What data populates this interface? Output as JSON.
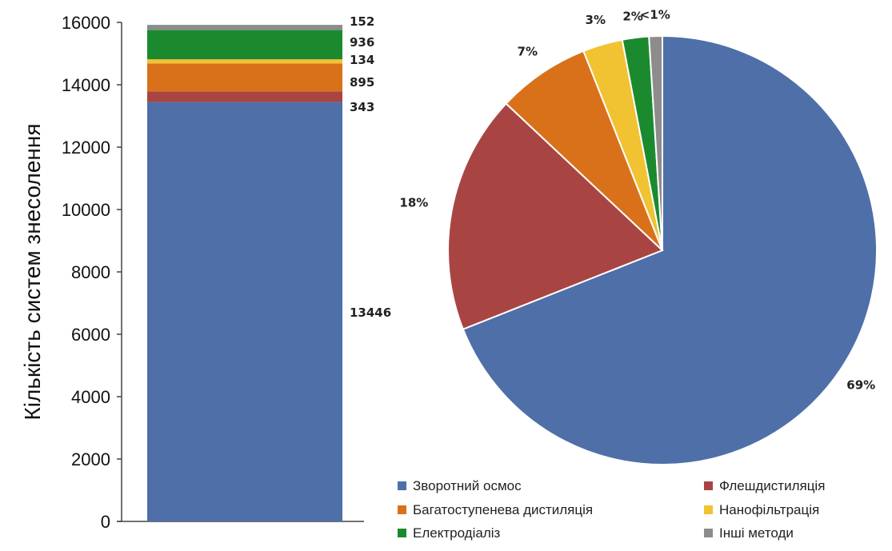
{
  "chart_data": [
    {
      "type": "bar",
      "stacked": true,
      "ylabel": "Кількість систем знесолення",
      "ylim": [
        0,
        16000
      ],
      "yticks": [
        0,
        2000,
        4000,
        6000,
        8000,
        10000,
        12000,
        14000,
        16000
      ],
      "series": [
        {
          "name": "Зворотний осмос",
          "value": 13446,
          "label": "13446",
          "color": "#4f6fa8"
        },
        {
          "name": "Флешдистиляція",
          "value": 343,
          "label": "343",
          "color": "#a84543"
        },
        {
          "name": "Багатоступенева дистиляція",
          "value": 895,
          "label": "895",
          "color": "#d9711a"
        },
        {
          "name": "Нанофільтрація",
          "value": 134,
          "label": "134",
          "color": "#f1c232"
        },
        {
          "name": "Електродіаліз",
          "value": 936,
          "label": "936",
          "color": "#1b8a2f"
        },
        {
          "name": "Інші методи",
          "value": 152,
          "label": "152",
          "color": "#8c8c8c"
        }
      ],
      "grid": false
    },
    {
      "type": "pie",
      "slices": [
        {
          "name": "Зворотний осмос",
          "value": 69,
          "label": "69%",
          "color": "#4f6fa8"
        },
        {
          "name": "Флешдистиляція",
          "value": 18,
          "label": "18%",
          "color": "#a84543"
        },
        {
          "name": "Багатоступенева дистиляція",
          "value": 7,
          "label": "7%",
          "color": "#d9711a"
        },
        {
          "name": "Нанофільтрація",
          "value": 3,
          "label": "3%",
          "color": "#f1c232"
        },
        {
          "name": "Електродіаліз",
          "value": 2,
          "label": "2%",
          "color": "#1b8a2f"
        },
        {
          "name": "Інші методи",
          "value": 1,
          "label": "<1%",
          "color": "#8c8c8c"
        }
      ],
      "legend_position": "bottom"
    }
  ],
  "legend": [
    {
      "label": "Зворотний осмос",
      "color": "#4f6fa8"
    },
    {
      "label": "Флешдистиляція",
      "color": "#a84543"
    },
    {
      "label": "Багатоступенева дистиляція",
      "color": "#d9711a"
    },
    {
      "label": "Нанофільтрація",
      "color": "#f1c232"
    },
    {
      "label": "Електродіаліз",
      "color": "#1b8a2f"
    },
    {
      "label": "Інші методи",
      "color": "#8c8c8c"
    }
  ]
}
